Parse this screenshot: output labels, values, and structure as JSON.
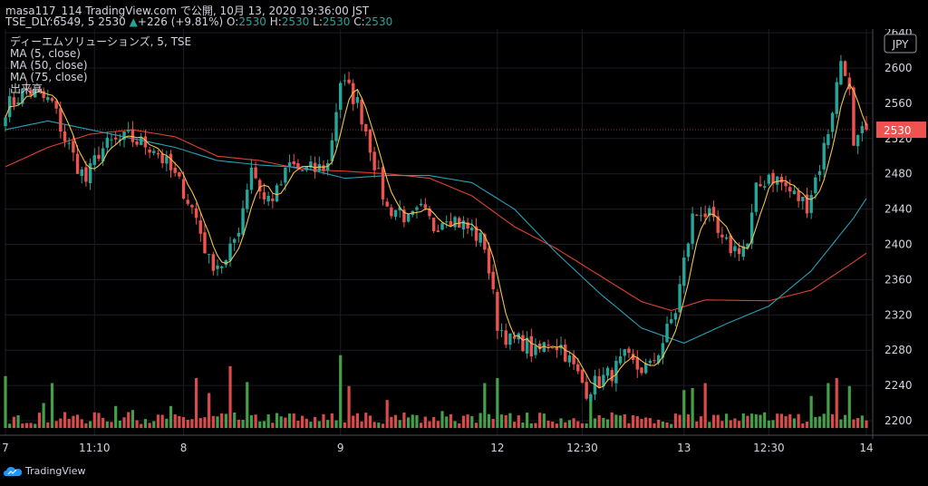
{
  "header": {
    "line1": "masa117_114 TradingView.com で公開, 10月 13, 2020 19:36:00 JST",
    "symbol": "TSE_DLY:6549, 5",
    "last": "2530",
    "change_arrow": "▲",
    "change": "+226 (+9.81%)",
    "o_label": "O:",
    "o": "2530",
    "h_label": "H:",
    "h": "2530",
    "l_label": "L:",
    "l": "2530",
    "c_label": "C:",
    "c": "2530"
  },
  "legend": {
    "title": "ディーエムソリューションズ, 5, TSE",
    "ma5": "MA (5, close)",
    "ma50": "MA (50, close)",
    "ma75": "MA (75, close)",
    "volume": "出来高"
  },
  "brand": "TradingView",
  "colors": {
    "up": "#26a69a",
    "down": "#ef5350",
    "vol_up": "#4caf50",
    "vol_down": "#ef5350",
    "ma5": "#f2c14e",
    "ma50": "#26a0b8",
    "ma75": "#e04030",
    "price_badge": "#ef5350"
  },
  "chart_data": {
    "type": "candlestick",
    "currency": "JPY",
    "last_price": "2530",
    "y_ticks": [
      "2200",
      "2240",
      "2280",
      "2320",
      "2360",
      "2400",
      "2440",
      "2480",
      "2520",
      "2560",
      "2600",
      "2640"
    ],
    "ylim": [
      2188,
      2648
    ],
    "x_ticks": [
      "7",
      "11:10",
      "8",
      "9",
      "12",
      "12:30",
      "13",
      "12:30",
      "14"
    ],
    "x_tick_bars": [
      0,
      21,
      42,
      79,
      116,
      136,
      160,
      180,
      203
    ],
    "n_bars": 204,
    "ohlc_anchor_close": [
      [
        0,
        2555
      ],
      [
        5,
        2575
      ],
      [
        11,
        2560
      ],
      [
        14,
        2520
      ],
      [
        17,
        2490
      ],
      [
        19,
        2472
      ],
      [
        22,
        2505
      ],
      [
        25,
        2515
      ],
      [
        29,
        2520
      ],
      [
        35,
        2510
      ],
      [
        38,
        2490
      ],
      [
        42,
        2462
      ],
      [
        45,
        2430
      ],
      [
        48,
        2380
      ],
      [
        52,
        2378
      ],
      [
        55,
        2420
      ],
      [
        58,
        2490
      ],
      [
        61,
        2450
      ],
      [
        64,
        2458
      ],
      [
        67,
        2490
      ],
      [
        70,
        2484
      ],
      [
        73,
        2484
      ],
      [
        76,
        2490
      ],
      [
        79,
        2585
      ],
      [
        81,
        2575
      ],
      [
        83,
        2560
      ],
      [
        85,
        2530
      ],
      [
        88,
        2475
      ],
      [
        90,
        2440
      ],
      [
        93,
        2440
      ],
      [
        95,
        2425
      ],
      [
        98,
        2438
      ],
      [
        101,
        2420
      ],
      [
        104,
        2435
      ],
      [
        107,
        2425
      ],
      [
        110,
        2415
      ],
      [
        113,
        2400
      ],
      [
        116,
        2310
      ],
      [
        119,
        2290
      ],
      [
        122,
        2290
      ],
      [
        125,
        2275
      ],
      [
        128,
        2290
      ],
      [
        131,
        2285
      ],
      [
        134,
        2260
      ],
      [
        137,
        2235
      ],
      [
        140,
        2245
      ],
      [
        143,
        2255
      ],
      [
        146,
        2270
      ],
      [
        149,
        2260
      ],
      [
        152,
        2260
      ],
      [
        155,
        2290
      ],
      [
        158,
        2325
      ],
      [
        160,
        2380
      ],
      [
        162,
        2430
      ],
      [
        164,
        2440
      ],
      [
        166,
        2430
      ],
      [
        169,
        2400
      ],
      [
        172,
        2395
      ],
      [
        175,
        2400
      ],
      [
        177,
        2460
      ],
      [
        180,
        2480
      ],
      [
        183,
        2470
      ],
      [
        186,
        2455
      ],
      [
        189,
        2445
      ],
      [
        192,
        2490
      ],
      [
        194,
        2530
      ],
      [
        196,
        2580
      ],
      [
        197,
        2610
      ],
      [
        198,
        2600
      ],
      [
        199,
        2570
      ],
      [
        200,
        2505
      ],
      [
        202,
        2525
      ],
      [
        203,
        2530
      ]
    ],
    "ma50_anchor": [
      [
        0,
        2530
      ],
      [
        10,
        2540
      ],
      [
        20,
        2530
      ],
      [
        30,
        2520
      ],
      [
        40,
        2510
      ],
      [
        50,
        2495
      ],
      [
        60,
        2490
      ],
      [
        70,
        2487
      ],
      [
        80,
        2475
      ],
      [
        90,
        2478
      ],
      [
        100,
        2478
      ],
      [
        110,
        2470
      ],
      [
        120,
        2440
      ],
      [
        130,
        2390
      ],
      [
        140,
        2345
      ],
      [
        150,
        2305
      ],
      [
        160,
        2288
      ],
      [
        170,
        2310
      ],
      [
        180,
        2330
      ],
      [
        190,
        2370
      ],
      [
        200,
        2430
      ],
      [
        203,
        2452
      ]
    ],
    "ma75_anchor": [
      [
        0,
        2488
      ],
      [
        10,
        2510
      ],
      [
        20,
        2525
      ],
      [
        30,
        2530
      ],
      [
        40,
        2522
      ],
      [
        50,
        2500
      ],
      [
        60,
        2495
      ],
      [
        70,
        2485
      ],
      [
        80,
        2483
      ],
      [
        90,
        2480
      ],
      [
        100,
        2475
      ],
      [
        110,
        2455
      ],
      [
        120,
        2420
      ],
      [
        130,
        2395
      ],
      [
        140,
        2365
      ],
      [
        150,
        2335
      ],
      [
        157,
        2325
      ],
      [
        165,
        2337
      ],
      [
        180,
        2336
      ],
      [
        190,
        2348
      ],
      [
        200,
        2380
      ],
      [
        203,
        2390
      ]
    ],
    "volume_up_bars": [
      0,
      9,
      11,
      26,
      30,
      33,
      39,
      57,
      60,
      61,
      62,
      72,
      79,
      103,
      112,
      113,
      114,
      116,
      117,
      122,
      124,
      133,
      137,
      162,
      166,
      177,
      178,
      181,
      190,
      192,
      193,
      194,
      198,
      199
    ],
    "volume_peaks": [
      [
        0,
        0.52
      ],
      [
        9,
        0.25
      ],
      [
        11,
        0.45
      ],
      [
        26,
        0.22
      ],
      [
        30,
        0.18
      ],
      [
        39,
        0.22
      ],
      [
        45,
        0.5
      ],
      [
        48,
        0.35
      ],
      [
        53,
        0.62
      ],
      [
        57,
        0.46
      ],
      [
        79,
        0.73
      ],
      [
        81,
        0.42
      ],
      [
        90,
        0.28
      ],
      [
        103,
        0.17
      ],
      [
        113,
        0.45
      ],
      [
        116,
        0.5
      ],
      [
        138,
        0.28
      ],
      [
        160,
        0.38
      ],
      [
        162,
        0.4
      ],
      [
        165,
        0.45
      ],
      [
        190,
        0.32
      ],
      [
        194,
        0.45
      ],
      [
        196,
        0.5
      ],
      [
        199,
        0.42
      ]
    ]
  }
}
